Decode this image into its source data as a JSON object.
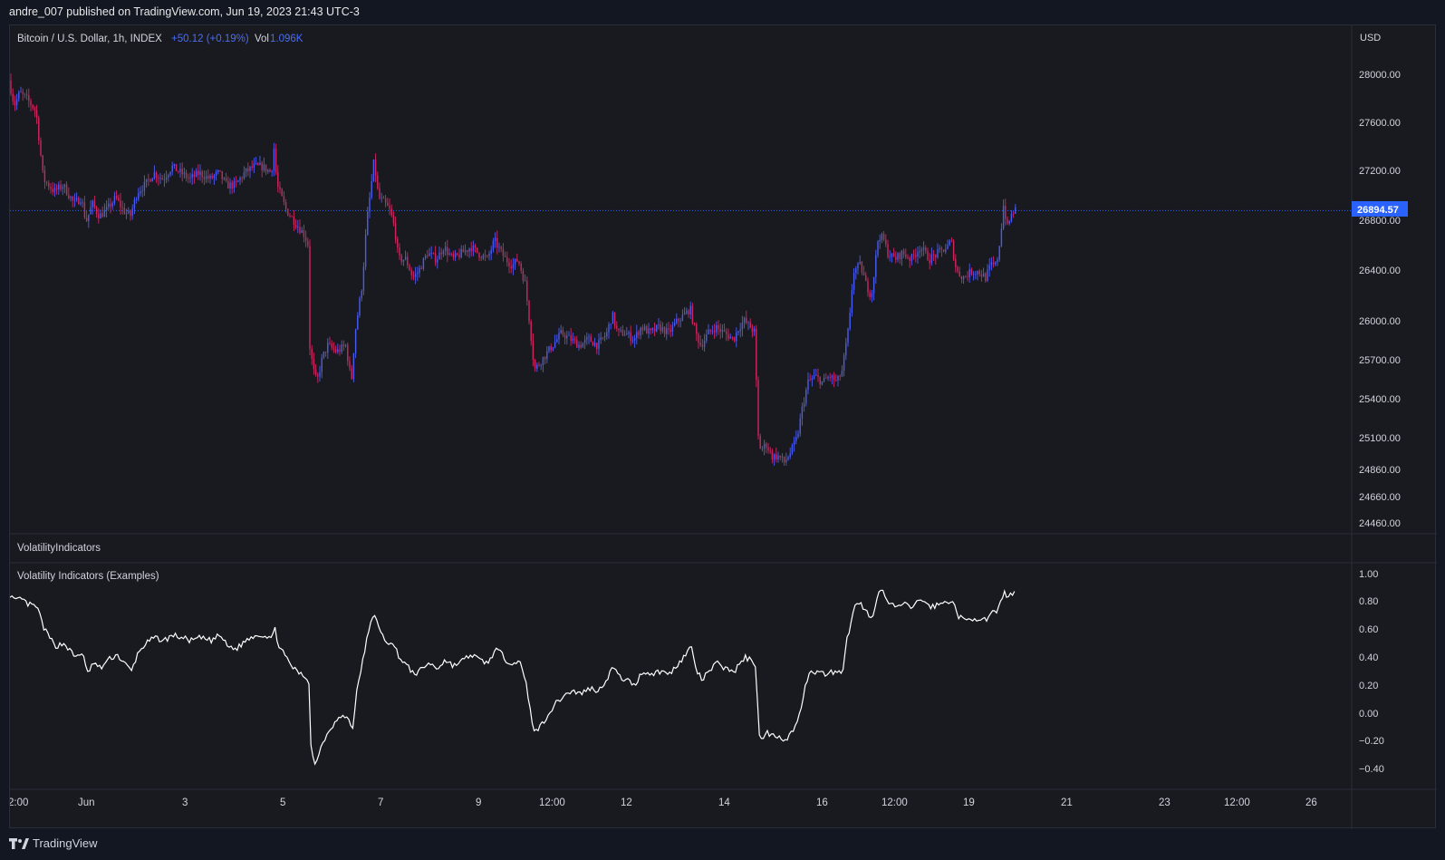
{
  "header": {
    "published_line": "andre_007 published on TradingView.com, Jun 19, 2023 21:43 UTC-3"
  },
  "legend": {
    "symbol": "Bitcoin / U.S. Dollar, 1h, INDEX",
    "change": "+50.12 (+0.19%)",
    "vol_label": "Vol",
    "vol_value": "1.096K"
  },
  "price_axis": {
    "currency": "USD",
    "ticks": [
      "28000.00",
      "27600.00",
      "27200.00",
      "26800.00",
      "26400.00",
      "26000.00",
      "25700.00",
      "25400.00",
      "25100.00",
      "24860.00",
      "24660.00",
      "24460.00"
    ],
    "last_price": "26894.57"
  },
  "indicator_panes": {
    "pane1_title": "VolatilityIndicators",
    "pane2_title": "Volatility Indicators (Examples)",
    "ticks": [
      "1.00",
      "0.80",
      "0.60",
      "0.40",
      "0.20",
      "0.00",
      "−0.20",
      "−0.40"
    ]
  },
  "time_axis": {
    "labels": [
      "2:00",
      "Jun",
      "3",
      "5",
      "7",
      "9",
      "12:00",
      "12",
      "14",
      "16",
      "12:00",
      "19",
      "21",
      "23",
      "12:00",
      "26"
    ]
  },
  "footer": {
    "brand": "TradingView"
  },
  "colors": {
    "up": "#4a5cf0",
    "down": "#d0265e",
    "last_price_badge": "#2962ff",
    "indicator_line": "#ffffff"
  },
  "chart_data": [
    {
      "type": "candlestick",
      "title": "Bitcoin / U.S. Dollar, 1h, INDEX",
      "ylabel": "USD",
      "ylim": [
        24400,
        28300
      ],
      "last_price": 26894.57,
      "x_range": [
        "Jun 1",
        "Jun 19"
      ],
      "path": [
        [
          0,
          27950
        ],
        [
          6,
          27750
        ],
        [
          12,
          27850
        ],
        [
          20,
          27800
        ],
        [
          30,
          27700
        ],
        [
          38,
          27150
        ],
        [
          50,
          27050
        ],
        [
          60,
          27100
        ],
        [
          72,
          26950
        ],
        [
          80,
          27000
        ],
        [
          85,
          26800
        ],
        [
          92,
          26950
        ],
        [
          100,
          26850
        ],
        [
          108,
          26900
        ],
        [
          118,
          27000
        ],
        [
          126,
          26900
        ],
        [
          134,
          26850
        ],
        [
          142,
          27050
        ],
        [
          150,
          27100
        ],
        [
          160,
          27200
        ],
        [
          170,
          27150
        ],
        [
          180,
          27250
        ],
        [
          190,
          27200
        ],
        [
          200,
          27150
        ],
        [
          210,
          27200
        ],
        [
          222,
          27150
        ],
        [
          232,
          27200
        ],
        [
          240,
          27100
        ],
        [
          250,
          27100
        ],
        [
          260,
          27200
        ],
        [
          270,
          27250
        ],
        [
          280,
          27250
        ],
        [
          290,
          27200
        ],
        [
          292,
          27450
        ],
        [
          296,
          27100
        ],
        [
          306,
          26900
        ],
        [
          316,
          26800
        ],
        [
          326,
          26700
        ],
        [
          331,
          26600
        ],
        [
          332,
          25800
        ],
        [
          336,
          25600
        ],
        [
          340,
          25500
        ],
        [
          346,
          25700
        ],
        [
          352,
          25800
        ],
        [
          362,
          25750
        ],
        [
          372,
          25800
        ],
        [
          378,
          25500
        ],
        [
          382,
          25900
        ],
        [
          390,
          26300
        ],
        [
          395,
          26800
        ],
        [
          400,
          27100
        ],
        [
          403,
          27300
        ],
        [
          408,
          27000
        ],
        [
          415,
          26950
        ],
        [
          420,
          26900
        ],
        [
          426,
          26750
        ],
        [
          430,
          26500
        ],
        [
          438,
          26500
        ],
        [
          446,
          26350
        ],
        [
          452,
          26400
        ],
        [
          462,
          26550
        ],
        [
          472,
          26500
        ],
        [
          480,
          26600
        ],
        [
          490,
          26500
        ],
        [
          500,
          26550
        ],
        [
          510,
          26600
        ],
        [
          518,
          26550
        ],
        [
          528,
          26500
        ],
        [
          536,
          26650
        ],
        [
          540,
          26600
        ],
        [
          548,
          26500
        ],
        [
          556,
          26450
        ],
        [
          562,
          26500
        ],
        [
          570,
          26300
        ],
        [
          576,
          25900
        ],
        [
          580,
          25600
        ],
        [
          590,
          25700
        ],
        [
          600,
          25800
        ],
        [
          610,
          25900
        ],
        [
          620,
          25850
        ],
        [
          630,
          25800
        ],
        [
          640,
          25850
        ],
        [
          650,
          25800
        ],
        [
          660,
          25900
        ],
        [
          666,
          26050
        ],
        [
          672,
          25900
        ],
        [
          680,
          25900
        ],
        [
          690,
          25850
        ],
        [
          698,
          25950
        ],
        [
          708,
          25900
        ],
        [
          718,
          25950
        ],
        [
          728,
          25900
        ],
        [
          738,
          26000
        ],
        [
          746,
          26050
        ],
        [
          752,
          26100
        ],
        [
          758,
          25900
        ],
        [
          764,
          25800
        ],
        [
          772,
          25900
        ],
        [
          780,
          25950
        ],
        [
          790,
          25900
        ],
        [
          800,
          25850
        ],
        [
          806,
          25950
        ],
        [
          812,
          26000
        ],
        [
          818,
          25950
        ],
        [
          824,
          25900
        ],
        [
          826,
          25100
        ],
        [
          830,
          24950
        ],
        [
          836,
          25000
        ],
        [
          842,
          24900
        ],
        [
          850,
          24900
        ],
        [
          856,
          24850
        ],
        [
          864,
          24950
        ],
        [
          870,
          25050
        ],
        [
          876,
          25300
        ],
        [
          882,
          25500
        ],
        [
          890,
          25550
        ],
        [
          898,
          25500
        ],
        [
          906,
          25550
        ],
        [
          914,
          25500
        ],
        [
          920,
          25600
        ],
        [
          924,
          25800
        ],
        [
          928,
          26000
        ],
        [
          932,
          26400
        ],
        [
          940,
          26450
        ],
        [
          946,
          26300
        ],
        [
          952,
          26200
        ],
        [
          956,
          26450
        ],
        [
          960,
          26700
        ],
        [
          966,
          26650
        ],
        [
          970,
          26550
        ],
        [
          978,
          26500
        ],
        [
          986,
          26550
        ],
        [
          996,
          26500
        ],
        [
          1006,
          26600
        ],
        [
          1016,
          26500
        ],
        [
          1026,
          26550
        ],
        [
          1036,
          26600
        ],
        [
          1040,
          26650
        ],
        [
          1046,
          26400
        ],
        [
          1054,
          26350
        ],
        [
          1062,
          26400
        ],
        [
          1070,
          26400
        ],
        [
          1078,
          26350
        ],
        [
          1084,
          26450
        ],
        [
          1090,
          26450
        ],
        [
          1094,
          26650
        ],
        [
          1098,
          26950
        ],
        [
          1102,
          26750
        ],
        [
          1106,
          26850
        ],
        [
          1110,
          26900
        ]
      ]
    },
    {
      "type": "line",
      "title": "Volatility Indicators (Examples)",
      "ylim": [
        -0.5,
        1.05
      ],
      "path": [
        [
          0,
          0.85
        ],
        [
          6,
          0.8
        ],
        [
          12,
          0.82
        ],
        [
          20,
          0.78
        ],
        [
          30,
          0.76
        ],
        [
          38,
          0.6
        ],
        [
          50,
          0.48
        ],
        [
          60,
          0.5
        ],
        [
          72,
          0.4
        ],
        [
          80,
          0.44
        ],
        [
          85,
          0.28
        ],
        [
          92,
          0.36
        ],
        [
          100,
          0.32
        ],
        [
          108,
          0.38
        ],
        [
          118,
          0.42
        ],
        [
          126,
          0.36
        ],
        [
          134,
          0.3
        ],
        [
          142,
          0.44
        ],
        [
          150,
          0.5
        ],
        [
          160,
          0.54
        ],
        [
          170,
          0.52
        ],
        [
          180,
          0.56
        ],
        [
          190,
          0.54
        ],
        [
          200,
          0.52
        ],
        [
          210,
          0.54
        ],
        [
          222,
          0.52
        ],
        [
          232,
          0.56
        ],
        [
          240,
          0.48
        ],
        [
          250,
          0.46
        ],
        [
          260,
          0.52
        ],
        [
          270,
          0.56
        ],
        [
          280,
          0.56
        ],
        [
          290,
          0.54
        ],
        [
          292,
          0.62
        ],
        [
          296,
          0.5
        ],
        [
          306,
          0.38
        ],
        [
          316,
          0.3
        ],
        [
          326,
          0.26
        ],
        [
          331,
          0.22
        ],
        [
          332,
          -0.22
        ],
        [
          336,
          -0.38
        ],
        [
          340,
          -0.3
        ],
        [
          346,
          -0.2
        ],
        [
          352,
          -0.12
        ],
        [
          362,
          -0.04
        ],
        [
          372,
          -0.02
        ],
        [
          378,
          -0.12
        ],
        [
          382,
          0.12
        ],
        [
          390,
          0.4
        ],
        [
          395,
          0.56
        ],
        [
          400,
          0.68
        ],
        [
          403,
          0.72
        ],
        [
          408,
          0.58
        ],
        [
          415,
          0.52
        ],
        [
          420,
          0.5
        ],
        [
          426,
          0.46
        ],
        [
          430,
          0.4
        ],
        [
          438,
          0.34
        ],
        [
          446,
          0.28
        ],
        [
          452,
          0.3
        ],
        [
          462,
          0.36
        ],
        [
          472,
          0.32
        ],
        [
          480,
          0.38
        ],
        [
          490,
          0.34
        ],
        [
          500,
          0.38
        ],
        [
          510,
          0.42
        ],
        [
          518,
          0.38
        ],
        [
          528,
          0.36
        ],
        [
          536,
          0.46
        ],
        [
          540,
          0.44
        ],
        [
          548,
          0.38
        ],
        [
          556,
          0.36
        ],
        [
          562,
          0.38
        ],
        [
          570,
          0.2
        ],
        [
          576,
          -0.05
        ],
        [
          580,
          -0.14
        ],
        [
          590,
          -0.05
        ],
        [
          600,
          0.05
        ],
        [
          610,
          0.12
        ],
        [
          620,
          0.16
        ],
        [
          630,
          0.14
        ],
        [
          640,
          0.18
        ],
        [
          650,
          0.16
        ],
        [
          660,
          0.26
        ],
        [
          666,
          0.34
        ],
        [
          672,
          0.26
        ],
        [
          680,
          0.24
        ],
        [
          690,
          0.2
        ],
        [
          698,
          0.3
        ],
        [
          708,
          0.28
        ],
        [
          718,
          0.3
        ],
        [
          728,
          0.28
        ],
        [
          738,
          0.36
        ],
        [
          746,
          0.42
        ],
        [
          752,
          0.48
        ],
        [
          758,
          0.3
        ],
        [
          764,
          0.24
        ],
        [
          772,
          0.3
        ],
        [
          780,
          0.36
        ],
        [
          790,
          0.32
        ],
        [
          800,
          0.3
        ],
        [
          806,
          0.36
        ],
        [
          812,
          0.4
        ],
        [
          818,
          0.38
        ],
        [
          824,
          0.34
        ],
        [
          826,
          -0.12
        ],
        [
          830,
          -0.2
        ],
        [
          836,
          -0.14
        ],
        [
          842,
          -0.16
        ],
        [
          850,
          -0.16
        ],
        [
          856,
          -0.2
        ],
        [
          864,
          -0.12
        ],
        [
          870,
          -0.06
        ],
        [
          876,
          0.14
        ],
        [
          882,
          0.3
        ],
        [
          890,
          0.3
        ],
        [
          898,
          0.28
        ],
        [
          906,
          0.3
        ],
        [
          914,
          0.28
        ],
        [
          920,
          0.32
        ],
        [
          924,
          0.54
        ],
        [
          928,
          0.62
        ],
        [
          932,
          0.76
        ],
        [
          940,
          0.78
        ],
        [
          946,
          0.72
        ],
        [
          952,
          0.66
        ],
        [
          956,
          0.82
        ],
        [
          960,
          0.9
        ],
        [
          966,
          0.84
        ],
        [
          970,
          0.78
        ],
        [
          978,
          0.76
        ],
        [
          986,
          0.78
        ],
        [
          996,
          0.76
        ],
        [
          1006,
          0.82
        ],
        [
          1016,
          0.76
        ],
        [
          1026,
          0.78
        ],
        [
          1036,
          0.8
        ],
        [
          1040,
          0.82
        ],
        [
          1046,
          0.7
        ],
        [
          1054,
          0.66
        ],
        [
          1062,
          0.68
        ],
        [
          1070,
          0.68
        ],
        [
          1078,
          0.66
        ],
        [
          1084,
          0.72
        ],
        [
          1090,
          0.72
        ],
        [
          1094,
          0.8
        ],
        [
          1098,
          0.88
        ],
        [
          1102,
          0.82
        ],
        [
          1106,
          0.86
        ],
        [
          1110,
          0.88
        ]
      ]
    }
  ]
}
